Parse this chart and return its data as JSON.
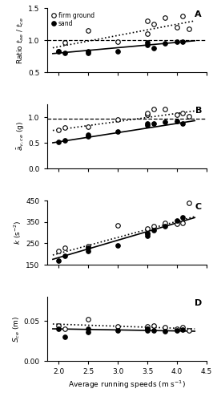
{
  "panel_A": {
    "title": "A",
    "ylabel": "Ratio $t_{ae}$ / $t_{ce}$",
    "ylim": [
      0.5,
      1.5
    ],
    "yticks": [
      0.5,
      1.0,
      1.5
    ],
    "dashed_y": 1.0,
    "firm_x": [
      2.0,
      2.1,
      2.5,
      3.0,
      3.5,
      3.5,
      3.6,
      3.8,
      4.0,
      4.1,
      4.2
    ],
    "firm_y": [
      0.83,
      0.96,
      1.15,
      0.98,
      1.3,
      1.1,
      1.25,
      1.35,
      1.2,
      1.38,
      1.18
    ],
    "sand_x": [
      2.0,
      2.1,
      2.5,
      2.5,
      3.0,
      3.5,
      3.5,
      3.6,
      3.8,
      4.0,
      4.1
    ],
    "sand_y": [
      0.82,
      0.8,
      0.82,
      0.8,
      0.82,
      0.92,
      0.96,
      0.88,
      0.95,
      0.98,
      0.97
    ],
    "firm_line_x": [
      1.9,
      4.3
    ],
    "firm_line_y": [
      0.88,
      1.3
    ],
    "sand_line_x": [
      1.9,
      4.3
    ],
    "sand_line_y": [
      0.79,
      0.99
    ]
  },
  "panel_B": {
    "title": "B",
    "ylabel": "$\\bar{a}_{v,ce}$ (g)",
    "ylim": [
      0,
      1.25
    ],
    "yticks": [
      0,
      0.5,
      1.0
    ],
    "dashed_y": 0.975,
    "firm_x": [
      2.0,
      2.1,
      2.5,
      3.0,
      3.5,
      3.5,
      3.6,
      3.8,
      4.0,
      4.1,
      4.2
    ],
    "firm_y": [
      0.75,
      0.8,
      0.82,
      0.95,
      1.05,
      1.08,
      1.15,
      1.15,
      1.05,
      1.08,
      1.02
    ],
    "sand_x": [
      2.0,
      2.1,
      2.5,
      2.5,
      3.0,
      3.5,
      3.5,
      3.6,
      3.8,
      4.0,
      4.1
    ],
    "sand_y": [
      0.52,
      0.55,
      0.62,
      0.65,
      0.72,
      0.85,
      0.88,
      0.88,
      0.9,
      0.92,
      0.88
    ],
    "firm_line_x": [
      1.9,
      4.3
    ],
    "firm_line_y": [
      0.74,
      1.12
    ],
    "sand_line_x": [
      1.9,
      4.3
    ],
    "sand_line_y": [
      0.5,
      0.93
    ]
  },
  "panel_C": {
    "title": "C",
    "ylabel": "$k$ (s$^{-2}$)",
    "ylim": [
      150,
      450
    ],
    "yticks": [
      150,
      250,
      350,
      450
    ],
    "firm_x": [
      2.0,
      2.1,
      2.5,
      3.0,
      3.5,
      3.5,
      3.6,
      3.8,
      4.0,
      4.1,
      4.2
    ],
    "firm_y": [
      215,
      230,
      235,
      335,
      295,
      320,
      330,
      345,
      340,
      345,
      440
    ],
    "sand_x": [
      2.0,
      2.1,
      2.5,
      2.5,
      3.0,
      3.5,
      3.5,
      3.6,
      3.8,
      4.0,
      4.1
    ],
    "sand_y": [
      170,
      190,
      215,
      230,
      240,
      285,
      295,
      310,
      330,
      355,
      370
    ],
    "firm_line_x": [
      1.9,
      4.3
    ],
    "firm_line_y": [
      195,
      375
    ],
    "sand_line_x": [
      1.9,
      4.3
    ],
    "sand_line_y": [
      175,
      370
    ]
  },
  "panel_D": {
    "title": "D",
    "ylabel": "$S_{ce}$ (m)",
    "ylim": [
      0,
      0.08
    ],
    "yticks": [
      0,
      0.05
    ],
    "firm_x": [
      2.0,
      2.1,
      2.5,
      3.0,
      3.5,
      3.5,
      3.6,
      3.8,
      4.0,
      4.1,
      4.2
    ],
    "firm_y": [
      0.044,
      0.04,
      0.052,
      0.043,
      0.043,
      0.04,
      0.044,
      0.042,
      0.04,
      0.042,
      0.038
    ],
    "sand_x": [
      2.0,
      2.1,
      2.5,
      2.5,
      3.0,
      3.5,
      3.5,
      3.6,
      3.8,
      4.0,
      4.1
    ],
    "sand_y": [
      0.04,
      0.03,
      0.04,
      0.036,
      0.038,
      0.038,
      0.04,
      0.038,
      0.037,
      0.038,
      0.039
    ],
    "firm_line_x": [
      1.9,
      4.3
    ],
    "firm_line_y": [
      0.046,
      0.04
    ],
    "sand_line_x": [
      1.9,
      4.3
    ],
    "sand_line_y": [
      0.04,
      0.037
    ]
  },
  "xlabel": "Average running speeds (m s$^{-1}$)",
  "xlim": [
    1.8,
    4.5
  ],
  "xticks": [
    2.0,
    2.5,
    3.0,
    3.5,
    4.0,
    4.5
  ],
  "bg_color": "white",
  "marker_size": 4,
  "line_width": 1.2
}
